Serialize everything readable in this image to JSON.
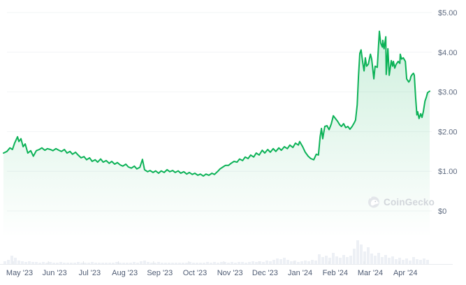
{
  "watermark": {
    "text": "CoinGecko",
    "icon": "coingecko-gecko-logo"
  },
  "colors": {
    "line": "#0cb257",
    "fill_top": "rgba(12,178,87,0.20)",
    "fill_bottom": "rgba(12,178,87,0)",
    "grid": "#f2f4f6",
    "axis": "#e8ebef",
    "tick": "#dfe3e8",
    "volume_bar": "#edf0f5",
    "y_label_text": "#5f6b80",
    "x_label_text": "#4e5b73",
    "watermark_text": "#d2d6db",
    "watermark_circle": "#e3e6ea"
  },
  "chart_data": {
    "type": "line",
    "title": "",
    "xlabel": "",
    "ylabel": "",
    "x_range_description": "May 2023 through late April 2024",
    "x_tick_labels": [
      "May '23",
      "Jun '23",
      "Jul '23",
      "Aug '23",
      "Sep '23",
      "Oct '23",
      "Nov '23",
      "Dec '23",
      "Jan '24",
      "Feb '24",
      "Mar '24",
      "Apr '24"
    ],
    "y_ticks": [
      0,
      1,
      2,
      3,
      4,
      5
    ],
    "y_tick_labels": [
      "$0",
      "$1.00",
      "$2.00",
      "$3.00",
      "$4.00",
      "$5.00"
    ],
    "ylim": [
      0,
      5
    ],
    "grid": true,
    "legend": false,
    "series": [
      {
        "name": "price_usd",
        "points": [
          [
            0.0,
            1.46
          ],
          [
            0.008,
            1.5
          ],
          [
            0.015,
            1.59
          ],
          [
            0.021,
            1.55
          ],
          [
            0.026,
            1.71
          ],
          [
            0.033,
            1.87
          ],
          [
            0.036,
            1.75
          ],
          [
            0.041,
            1.82
          ],
          [
            0.046,
            1.62
          ],
          [
            0.051,
            1.69
          ],
          [
            0.057,
            1.46
          ],
          [
            0.064,
            1.52
          ],
          [
            0.07,
            1.38
          ],
          [
            0.077,
            1.52
          ],
          [
            0.084,
            1.55
          ],
          [
            0.09,
            1.59
          ],
          [
            0.097,
            1.53
          ],
          [
            0.103,
            1.57
          ],
          [
            0.11,
            1.55
          ],
          [
            0.116,
            1.52
          ],
          [
            0.123,
            1.57
          ],
          [
            0.13,
            1.53
          ],
          [
            0.136,
            1.5
          ],
          [
            0.143,
            1.55
          ],
          [
            0.149,
            1.46
          ],
          [
            0.156,
            1.5
          ],
          [
            0.162,
            1.43
          ],
          [
            0.169,
            1.48
          ],
          [
            0.175,
            1.41
          ],
          [
            0.182,
            1.34
          ],
          [
            0.189,
            1.37
          ],
          [
            0.195,
            1.29
          ],
          [
            0.202,
            1.34
          ],
          [
            0.208,
            1.25
          ],
          [
            0.215,
            1.29
          ],
          [
            0.221,
            1.23
          ],
          [
            0.228,
            1.31
          ],
          [
            0.234,
            1.23
          ],
          [
            0.241,
            1.27
          ],
          [
            0.248,
            1.2
          ],
          [
            0.254,
            1.25
          ],
          [
            0.261,
            1.18
          ],
          [
            0.267,
            1.22
          ],
          [
            0.274,
            1.16
          ],
          [
            0.28,
            1.13
          ],
          [
            0.287,
            1.18
          ],
          [
            0.293,
            1.11
          ],
          [
            0.3,
            1.08
          ],
          [
            0.307,
            1.13
          ],
          [
            0.313,
            1.06
          ],
          [
            0.32,
            1.1
          ],
          [
            0.326,
            1.3
          ],
          [
            0.331,
            1.04
          ],
          [
            0.338,
            0.99
          ],
          [
            0.344,
            1.02
          ],
          [
            0.351,
            0.97
          ],
          [
            0.357,
            1.01
          ],
          [
            0.364,
            0.95
          ],
          [
            0.37,
            1.01
          ],
          [
            0.377,
            0.97
          ],
          [
            0.384,
            1.04
          ],
          [
            0.39,
            0.99
          ],
          [
            0.397,
            1.02
          ],
          [
            0.403,
            0.97
          ],
          [
            0.41,
            1.01
          ],
          [
            0.416,
            0.95
          ],
          [
            0.423,
            0.99
          ],
          [
            0.43,
            0.93
          ],
          [
            0.436,
            0.97
          ],
          [
            0.443,
            0.92
          ],
          [
            0.449,
            0.95
          ],
          [
            0.456,
            0.9
          ],
          [
            0.462,
            0.93
          ],
          [
            0.469,
            0.88
          ],
          [
            0.475,
            0.93
          ],
          [
            0.482,
            0.9
          ],
          [
            0.489,
            0.95
          ],
          [
            0.495,
            0.92
          ],
          [
            0.502,
            0.99
          ],
          [
            0.508,
            1.06
          ],
          [
            0.515,
            1.11
          ],
          [
            0.521,
            1.15
          ],
          [
            0.528,
            1.15
          ],
          [
            0.534,
            1.2
          ],
          [
            0.541,
            1.25
          ],
          [
            0.548,
            1.23
          ],
          [
            0.554,
            1.31
          ],
          [
            0.561,
            1.27
          ],
          [
            0.567,
            1.36
          ],
          [
            0.574,
            1.32
          ],
          [
            0.58,
            1.41
          ],
          [
            0.587,
            1.36
          ],
          [
            0.593,
            1.46
          ],
          [
            0.6,
            1.41
          ],
          [
            0.607,
            1.53
          ],
          [
            0.613,
            1.46
          ],
          [
            0.62,
            1.55
          ],
          [
            0.626,
            1.48
          ],
          [
            0.633,
            1.57
          ],
          [
            0.639,
            1.5
          ],
          [
            0.646,
            1.59
          ],
          [
            0.652,
            1.53
          ],
          [
            0.659,
            1.62
          ],
          [
            0.666,
            1.57
          ],
          [
            0.672,
            1.66
          ],
          [
            0.679,
            1.6
          ],
          [
            0.685,
            1.71
          ],
          [
            0.692,
            1.66
          ],
          [
            0.695,
            1.75
          ],
          [
            0.702,
            1.62
          ],
          [
            0.708,
            1.48
          ],
          [
            0.715,
            1.38
          ],
          [
            0.721,
            1.32
          ],
          [
            0.728,
            1.29
          ],
          [
            0.734,
            1.43
          ],
          [
            0.739,
            1.41
          ],
          [
            0.743,
            1.87
          ],
          [
            0.746,
            2.08
          ],
          [
            0.749,
            1.82
          ],
          [
            0.754,
            2.13
          ],
          [
            0.759,
            2.15
          ],
          [
            0.764,
            2.05
          ],
          [
            0.769,
            2.19
          ],
          [
            0.774,
            2.4
          ],
          [
            0.779,
            2.33
          ],
          [
            0.784,
            2.26
          ],
          [
            0.789,
            2.17
          ],
          [
            0.793,
            2.13
          ],
          [
            0.798,
            2.2
          ],
          [
            0.803,
            2.1
          ],
          [
            0.808,
            2.13
          ],
          [
            0.813,
            2.06
          ],
          [
            0.818,
            2.13
          ],
          [
            0.823,
            2.22
          ],
          [
            0.826,
            2.29
          ],
          [
            0.83,
            2.68
          ],
          [
            0.833,
            3.39
          ],
          [
            0.836,
            3.97
          ],
          [
            0.839,
            4.06
          ],
          [
            0.843,
            3.74
          ],
          [
            0.846,
            3.53
          ],
          [
            0.849,
            3.86
          ],
          [
            0.852,
            3.65
          ],
          [
            0.856,
            3.7
          ],
          [
            0.861,
            3.95
          ],
          [
            0.864,
            3.83
          ],
          [
            0.869,
            3.33
          ],
          [
            0.872,
            3.65
          ],
          [
            0.877,
            3.62
          ],
          [
            0.882,
            4.53
          ],
          [
            0.885,
            4.23
          ],
          [
            0.889,
            4.13
          ],
          [
            0.89,
            4.3
          ],
          [
            0.893,
            4.09
          ],
          [
            0.897,
            4.39
          ],
          [
            0.898,
            3.44
          ],
          [
            0.902,
            4.09
          ],
          [
            0.905,
            3.42
          ],
          [
            0.91,
            3.79
          ],
          [
            0.913,
            3.65
          ],
          [
            0.915,
            3.77
          ],
          [
            0.918,
            3.6
          ],
          [
            0.921,
            3.69
          ],
          [
            0.926,
            3.77
          ],
          [
            0.93,
            3.72
          ],
          [
            0.931,
            3.95
          ],
          [
            0.934,
            3.83
          ],
          [
            0.938,
            3.86
          ],
          [
            0.943,
            3.77
          ],
          [
            0.946,
            3.33
          ],
          [
            0.951,
            3.25
          ],
          [
            0.954,
            3.3
          ],
          [
            0.956,
            3.39
          ],
          [
            0.959,
            3.44
          ],
          [
            0.962,
            3.47
          ],
          [
            0.964,
            3.42
          ],
          [
            0.967,
            2.86
          ],
          [
            0.97,
            2.42
          ],
          [
            0.972,
            2.5
          ],
          [
            0.975,
            2.33
          ],
          [
            0.979,
            2.45
          ],
          [
            0.982,
            2.36
          ],
          [
            0.985,
            2.5
          ],
          [
            0.989,
            2.77
          ],
          [
            0.992,
            2.86
          ],
          [
            0.995,
            2.98
          ],
          [
            1.0,
            3.02
          ]
        ]
      }
    ],
    "volume_bars": [
      4,
      6,
      12,
      9,
      5,
      4,
      3,
      4,
      3,
      3,
      2,
      3,
      2,
      3,
      2,
      2,
      3,
      2,
      2,
      2,
      2,
      3,
      2,
      2,
      2,
      3,
      2,
      2,
      2,
      2,
      2,
      2,
      3,
      2,
      2,
      2,
      2,
      3,
      2,
      4,
      5,
      3,
      2,
      2,
      3,
      2,
      2,
      2,
      2,
      2,
      2,
      2,
      2,
      3,
      2,
      2,
      2,
      2,
      3,
      2,
      3,
      2,
      3,
      3,
      2,
      3,
      2,
      3,
      3,
      2,
      3,
      4,
      3,
      4,
      3,
      5,
      4,
      6,
      8,
      7,
      9,
      6,
      4,
      5,
      3,
      4,
      5,
      4,
      6,
      5,
      14,
      10,
      12,
      9,
      16,
      11,
      9,
      13,
      10,
      12,
      22,
      34,
      28,
      18,
      24,
      15,
      12,
      16,
      10,
      13,
      9,
      11,
      7,
      9,
      6,
      8,
      5,
      10,
      7,
      6,
      8,
      6
    ]
  }
}
